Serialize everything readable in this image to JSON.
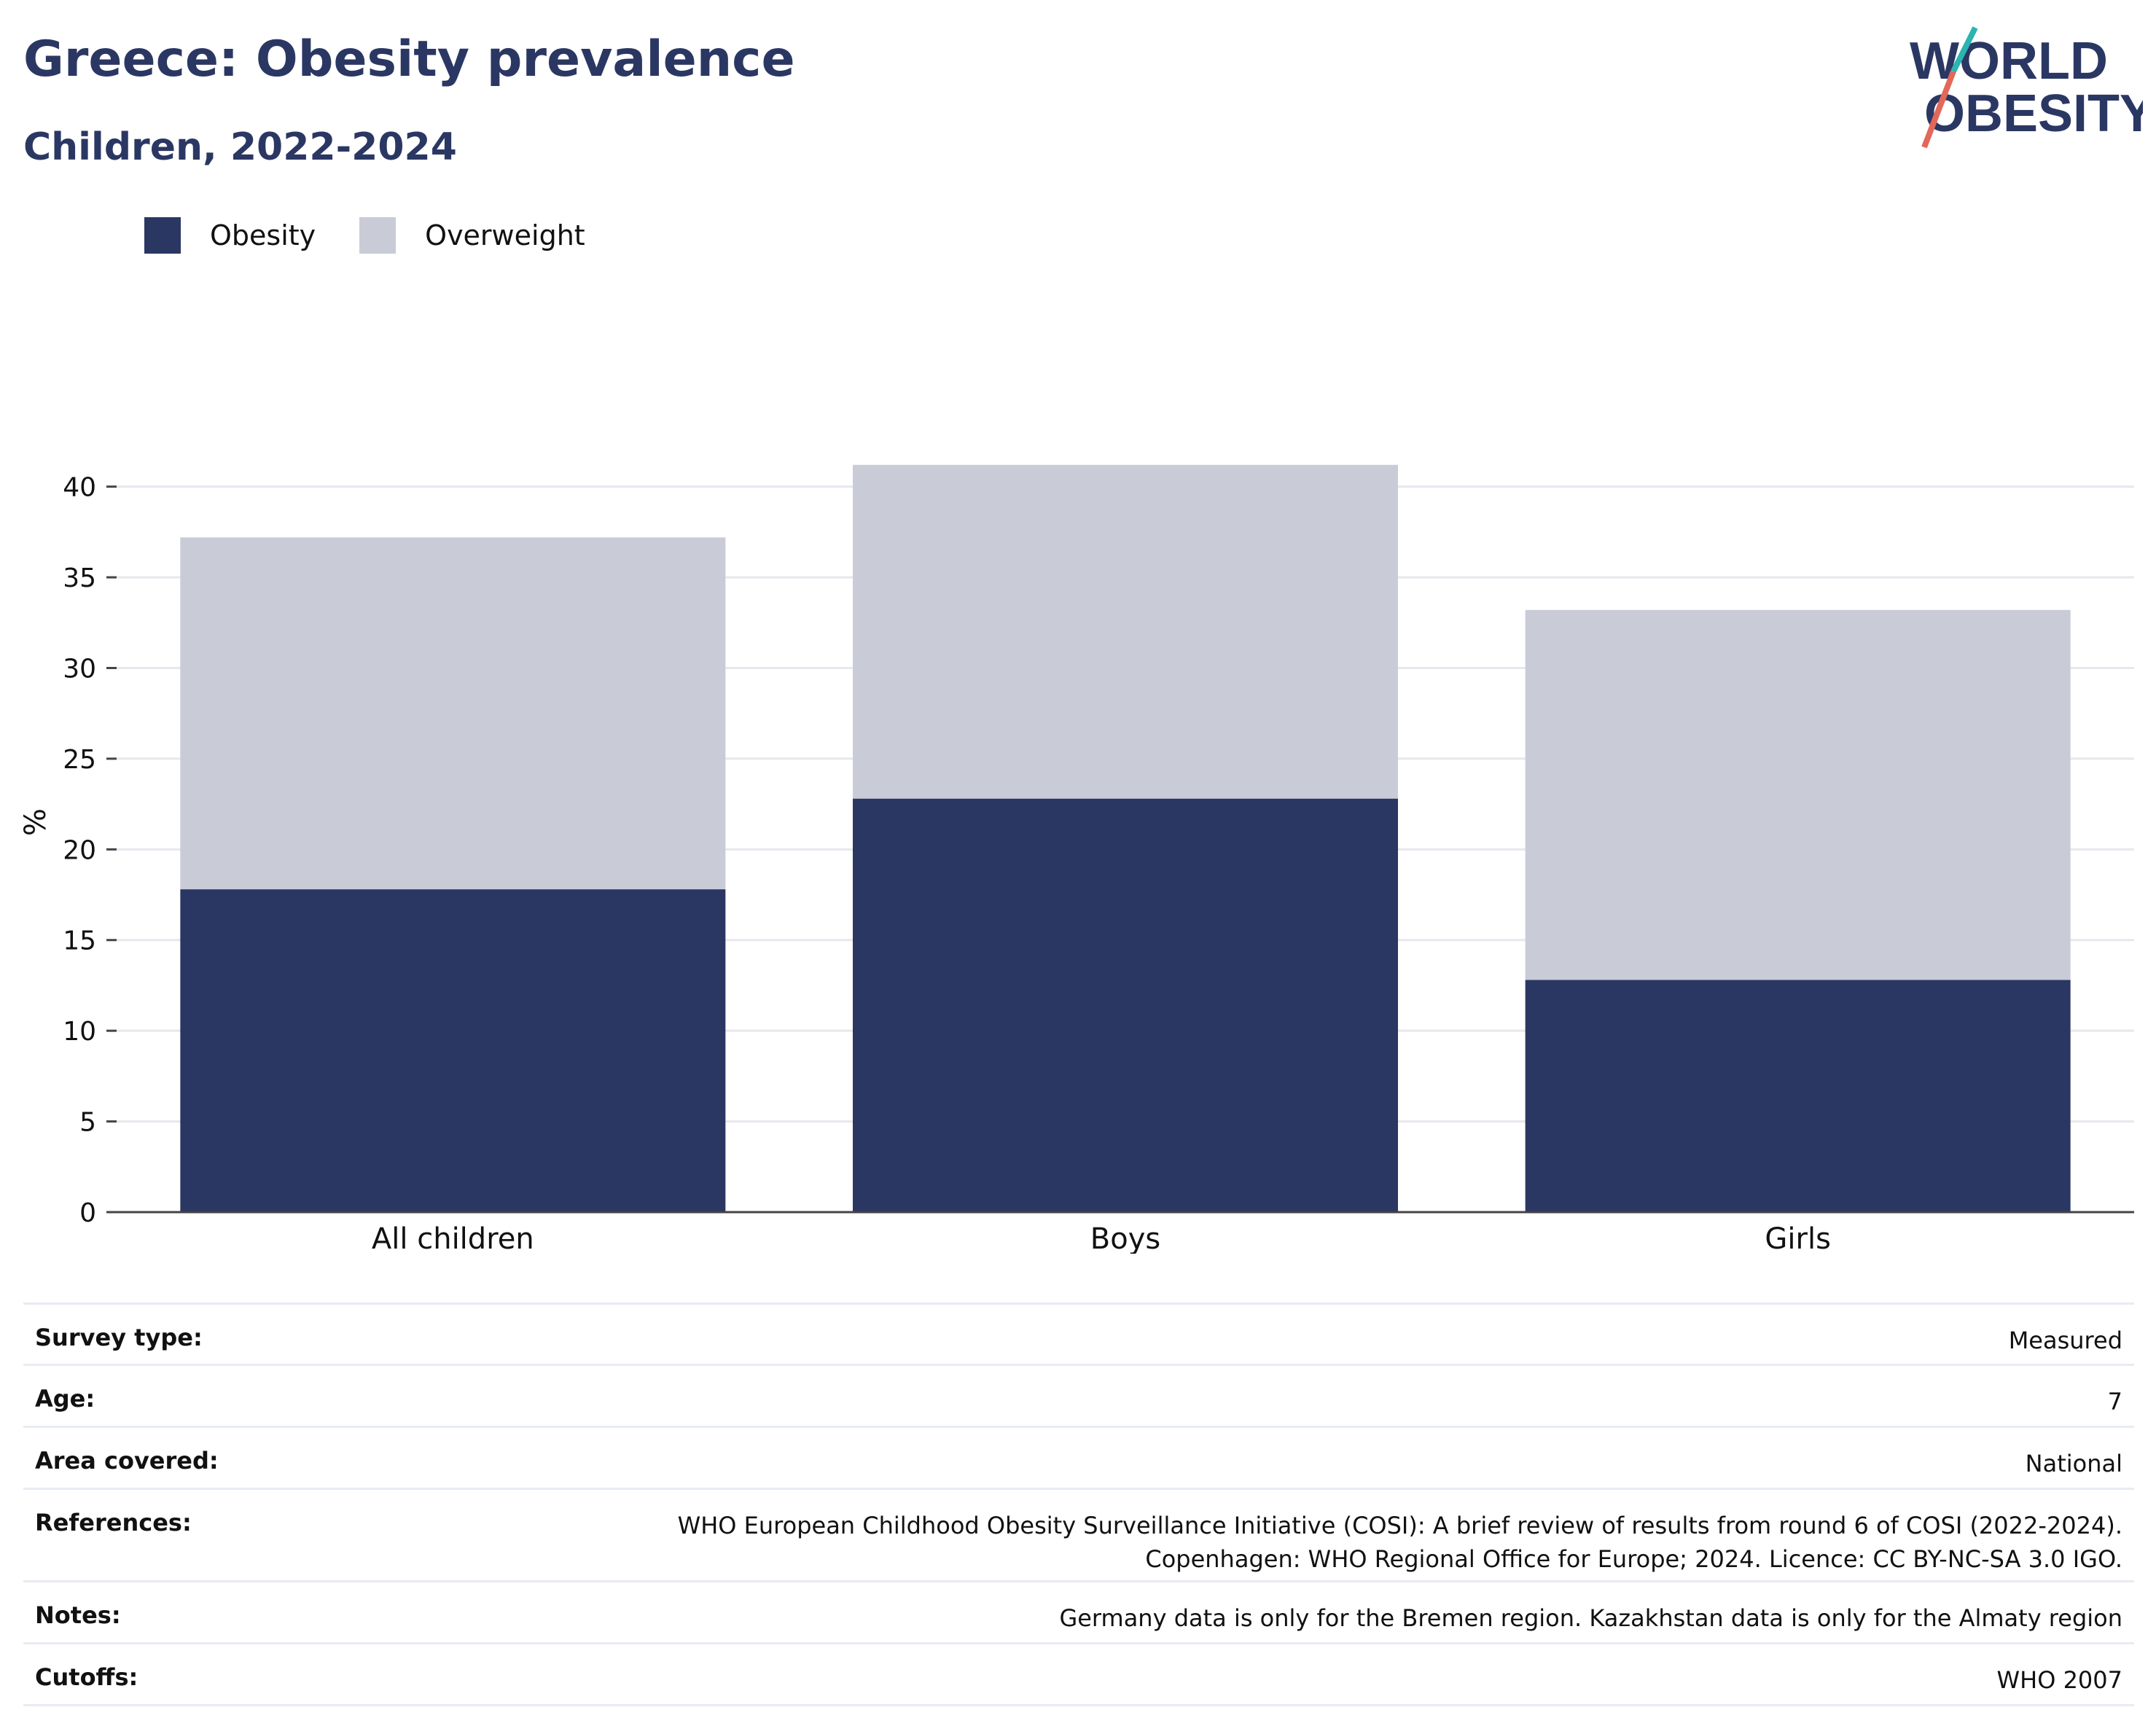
{
  "header": {
    "title": "Greece: Obesity prevalence",
    "subtitle": "Children, 2022-2024"
  },
  "logo": {
    "line1": "WORLD",
    "line2": "OBESITY",
    "colors": {
      "text": "#2b3763",
      "slash_top": "#2bb5b0",
      "slash_bottom": "#e2685a"
    }
  },
  "legend": [
    {
      "label": "Obesity",
      "color": "#2b3763"
    },
    {
      "label": "Overweight",
      "color": "#c9cbd7"
    }
  ],
  "chart_data": {
    "type": "bar",
    "stacked": true,
    "title": "Greece: Obesity prevalence",
    "subtitle": "Children, 2022-2024",
    "categories": [
      "All children",
      "Boys",
      "Girls"
    ],
    "series": [
      {
        "name": "Obesity",
        "color": "#2b3763",
        "values": [
          17.8,
          22.8,
          12.8
        ]
      },
      {
        "name": "Overweight",
        "color": "#c9cbd7",
        "values": [
          19.4,
          18.4,
          20.4
        ]
      }
    ],
    "xlabel": "",
    "ylabel": "%",
    "ylim": [
      0,
      43
    ],
    "yticks": [
      0,
      5,
      10,
      15,
      20,
      25,
      30,
      35,
      40
    ],
    "grid": true,
    "legend_position": "top-left"
  },
  "info": [
    {
      "key": "Survey type:",
      "value": "Measured"
    },
    {
      "key": "Age:",
      "value": "7"
    },
    {
      "key": "Area covered:",
      "value": "National"
    },
    {
      "key": "References:",
      "value_lines": [
        "WHO European Childhood Obesity Surveillance Initiative (COSI): A brief review of results from round 6 of COSI (2022-2024).",
        "Copenhagen: WHO Regional Office for Europe; 2024. Licence: CC BY-NC-SA 3.0 IGO."
      ]
    },
    {
      "key": "Notes:",
      "value": "Germany data is only for the Bremen region. Kazakhstan data is only for the Almaty region"
    },
    {
      "key": "Cutoffs:",
      "value": "WHO 2007"
    }
  ]
}
